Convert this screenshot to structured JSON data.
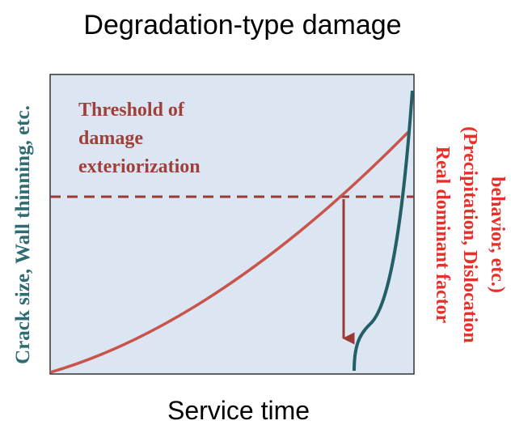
{
  "title": "Degradation-type damage",
  "left_axis_label": "Crack size, Wall thinning, etc.",
  "bottom_axis_label": "Service time",
  "right_axis_label": [
    "Real dominant factor",
    "(Precipitation, Dislocation",
    "behavior, etc.)"
  ],
  "annotation": [
    "Threshold of",
    "damage",
    "exteriorization"
  ]
}
